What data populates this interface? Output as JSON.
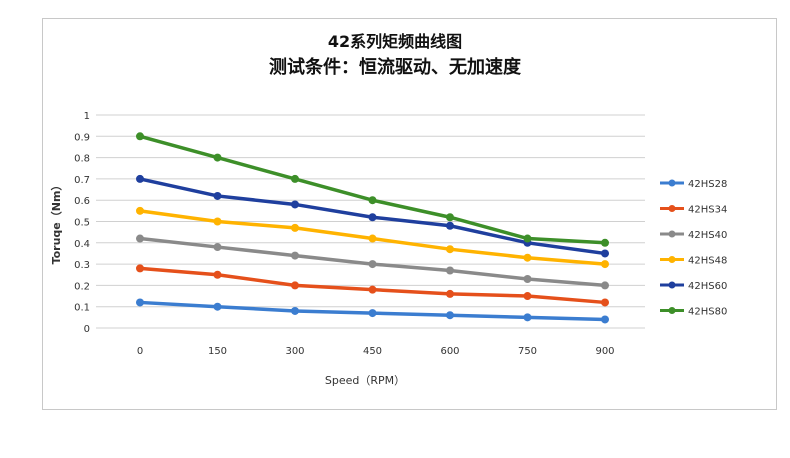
{
  "chart_data": {
    "type": "line",
    "title": "42系列矩频曲线图",
    "subtitle": "测试条件：恒流驱动、无加速度",
    "xlabel": "Speed（RPM）",
    "ylabel": "Toruqe（Nm）",
    "x": [
      0,
      150,
      300,
      450,
      600,
      750,
      900
    ],
    "ylim": [
      0,
      1
    ],
    "yticks": [
      "0",
      "0.1",
      "0.2",
      "0.3",
      "0.4",
      "0.5",
      "0.6",
      "0.7",
      "0.8",
      "0.9",
      "1"
    ],
    "grid": true,
    "legend": "right",
    "series": [
      {
        "name": "42HS28",
        "color": "#3b7dd0",
        "values": [
          0.12,
          0.1,
          0.08,
          0.07,
          0.06,
          0.05,
          0.04
        ]
      },
      {
        "name": "42HS34",
        "color": "#e5501b",
        "values": [
          0.28,
          0.25,
          0.2,
          0.18,
          0.16,
          0.15,
          0.12
        ]
      },
      {
        "name": "42HS40",
        "color": "#8a8a8a",
        "values": [
          0.42,
          0.38,
          0.34,
          0.3,
          0.27,
          0.23,
          0.2
        ]
      },
      {
        "name": "42HS48",
        "color": "#ffb300",
        "values": [
          0.55,
          0.5,
          0.47,
          0.42,
          0.37,
          0.33,
          0.3
        ]
      },
      {
        "name": "42HS60",
        "color": "#1f3f9e",
        "values": [
          0.7,
          0.62,
          0.58,
          0.52,
          0.48,
          0.4,
          0.35
        ]
      },
      {
        "name": "42HS80",
        "color": "#3d8f29",
        "values": [
          0.9,
          0.8,
          0.7,
          0.6,
          0.52,
          0.42,
          0.4
        ]
      }
    ]
  }
}
